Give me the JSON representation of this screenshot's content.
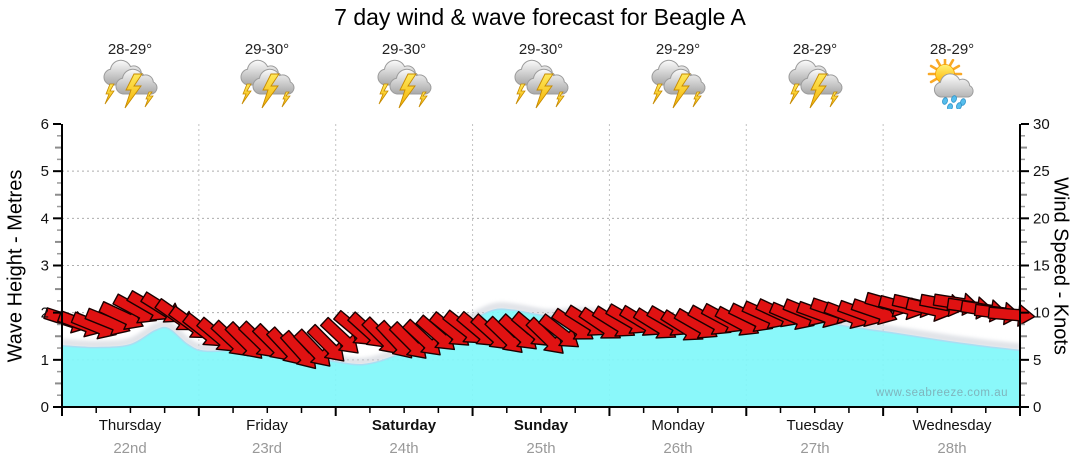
{
  "title": "7 day wind & wave forecast for Beagle A",
  "watermark": "www.seabreeze.com.au",
  "colors": {
    "wave_fill": "#80F7FA",
    "wave_edge": "#A9DEF2",
    "wave_shadow": "#C9CDD6",
    "barb_fill": "#E01212",
    "barb_outline": "#1A0000",
    "grid": "#ADADAD",
    "axis": "#000000",
    "date_text": "#999999",
    "temp_text": "#222222"
  },
  "days": [
    {
      "name": "Thursday",
      "date": "22nd",
      "temp": "28-29°",
      "icon": "storm",
      "weekend": false
    },
    {
      "name": "Friday",
      "date": "23rd",
      "temp": "29-30°",
      "icon": "storm",
      "weekend": false
    },
    {
      "name": "Saturday",
      "date": "24th",
      "temp": "29-30°",
      "icon": "storm",
      "weekend": true
    },
    {
      "name": "Sunday",
      "date": "25th",
      "temp": "29-30°",
      "icon": "storm",
      "weekend": true
    },
    {
      "name": "Monday",
      "date": "26th",
      "temp": "29-29°",
      "icon": "storm",
      "weekend": false
    },
    {
      "name": "Tuesday",
      "date": "27th",
      "temp": "28-29°",
      "icon": "storm",
      "weekend": false
    },
    {
      "name": "Wednesday",
      "date": "28th",
      "temp": "28-29°",
      "icon": "sun-showers",
      "weekend": false
    }
  ],
  "axes": {
    "wave": {
      "label": "Wave Height - Metres",
      "ticks": [
        0,
        1,
        2,
        3,
        4,
        5,
        6
      ],
      "range": [
        0,
        6
      ]
    },
    "wind": {
      "label": "Wind Speed - Knots",
      "ticks": [
        0,
        5,
        10,
        15,
        20,
        25,
        30
      ],
      "range": [
        0,
        30
      ]
    }
  },
  "chart_data": {
    "type": "area",
    "grid": true,
    "x_categories": [
      "Thursday 22nd",
      "Friday 23rd",
      "Saturday 24th",
      "Sunday 25th",
      "Monday 26th",
      "Tuesday 27th",
      "Wednesday 28th"
    ],
    "series": [
      {
        "name": "Wave Height",
        "units": "metres",
        "axis": "left",
        "style": "filled-area",
        "points_day_metres": [
          [
            0,
            1.3
          ],
          [
            0.25,
            1.26
          ],
          [
            0.5,
            1.32
          ],
          [
            0.68,
            1.62
          ],
          [
            0.78,
            1.66
          ],
          [
            0.92,
            1.32
          ],
          [
            1.05,
            1.18
          ],
          [
            1.35,
            1.21
          ],
          [
            1.65,
            1.1
          ],
          [
            1.95,
            0.98
          ],
          [
            2.2,
            0.9
          ],
          [
            2.45,
            1.1
          ],
          [
            2.7,
            1.45
          ],
          [
            2.95,
            1.78
          ],
          [
            3.15,
            2.05
          ],
          [
            3.3,
            2.05
          ],
          [
            3.55,
            1.93
          ],
          [
            3.8,
            1.97
          ],
          [
            4.05,
            1.85
          ],
          [
            4.35,
            1.72
          ],
          [
            4.65,
            1.73
          ],
          [
            4.95,
            1.85
          ],
          [
            5.15,
            1.95
          ],
          [
            5.45,
            1.85
          ],
          [
            5.75,
            1.7
          ],
          [
            6.05,
            1.58
          ],
          [
            6.4,
            1.42
          ],
          [
            6.7,
            1.3
          ],
          [
            7,
            1.2
          ]
        ]
      },
      {
        "name": "Wind Speed & Direction",
        "units": "knots",
        "axis": "right",
        "style": "wind-barbs",
        "barbs_day_knots_dirdeg": [
          [
            0.04,
            9.2,
            18
          ],
          [
            0.14,
            8.8,
            20
          ],
          [
            0.24,
            8.6,
            22
          ],
          [
            0.34,
            9.0,
            22
          ],
          [
            0.44,
            9.6,
            25
          ],
          [
            0.54,
            10.3,
            28
          ],
          [
            0.64,
            10.6,
            30
          ],
          [
            0.74,
            10.4,
            32
          ],
          [
            0.84,
            9.6,
            35
          ],
          [
            0.94,
            8.8,
            36
          ],
          [
            1.04,
            8.0,
            38
          ],
          [
            1.14,
            7.5,
            40
          ],
          [
            1.24,
            7.1,
            43
          ],
          [
            1.34,
            6.9,
            45
          ],
          [
            1.44,
            7.0,
            44
          ],
          [
            1.54,
            6.7,
            45
          ],
          [
            1.64,
            6.3,
            47
          ],
          [
            1.74,
            5.9,
            48
          ],
          [
            1.84,
            6.1,
            46
          ],
          [
            1.94,
            6.6,
            45
          ],
          [
            2.04,
            7.4,
            43
          ],
          [
            2.14,
            8.2,
            40
          ],
          [
            2.24,
            8.0,
            42
          ],
          [
            2.34,
            7.4,
            45
          ],
          [
            2.44,
            7.0,
            47
          ],
          [
            2.54,
            6.9,
            45
          ],
          [
            2.64,
            7.2,
            43
          ],
          [
            2.74,
            7.7,
            41
          ],
          [
            2.84,
            8.1,
            39
          ],
          [
            2.94,
            8.3,
            38
          ],
          [
            3.04,
            8.1,
            40
          ],
          [
            3.14,
            7.8,
            42
          ],
          [
            3.24,
            7.5,
            44
          ],
          [
            3.34,
            7.8,
            42
          ],
          [
            3.44,
            8.1,
            40
          ],
          [
            3.54,
            7.4,
            44
          ],
          [
            3.64,
            7.9,
            38
          ],
          [
            3.74,
            8.6,
            34
          ],
          [
            3.84,
            9.0,
            32
          ],
          [
            3.94,
            8.7,
            34
          ],
          [
            4.04,
            8.9,
            32
          ],
          [
            4.14,
            9.2,
            30
          ],
          [
            4.24,
            9.0,
            31
          ],
          [
            4.34,
            8.7,
            32
          ],
          [
            4.44,
            9.0,
            30
          ],
          [
            4.54,
            8.5,
            32
          ],
          [
            4.64,
            8.7,
            30
          ],
          [
            4.74,
            9.1,
            29
          ],
          [
            4.84,
            9.3,
            28
          ],
          [
            4.94,
            9.0,
            28
          ],
          [
            5.04,
            9.4,
            26
          ],
          [
            5.14,
            9.7,
            24
          ],
          [
            5.24,
            9.9,
            25
          ],
          [
            5.34,
            9.6,
            23
          ],
          [
            5.44,
            10.0,
            22
          ],
          [
            5.54,
            9.8,
            20
          ],
          [
            5.64,
            10.2,
            19
          ],
          [
            5.74,
            9.7,
            21
          ],
          [
            5.84,
            9.9,
            20
          ],
          [
            5.94,
            10.1,
            19
          ],
          [
            6.04,
            10.9,
            16
          ],
          [
            6.14,
            10.6,
            15
          ],
          [
            6.24,
            10.8,
            13
          ],
          [
            6.34,
            10.4,
            13
          ],
          [
            6.44,
            10.9,
            11
          ],
          [
            6.54,
            11.0,
            9
          ],
          [
            6.64,
            10.6,
            8
          ],
          [
            6.74,
            10.3,
            9
          ],
          [
            6.84,
            10.0,
            7
          ],
          [
            6.94,
            9.8,
            5
          ]
        ]
      }
    ]
  }
}
